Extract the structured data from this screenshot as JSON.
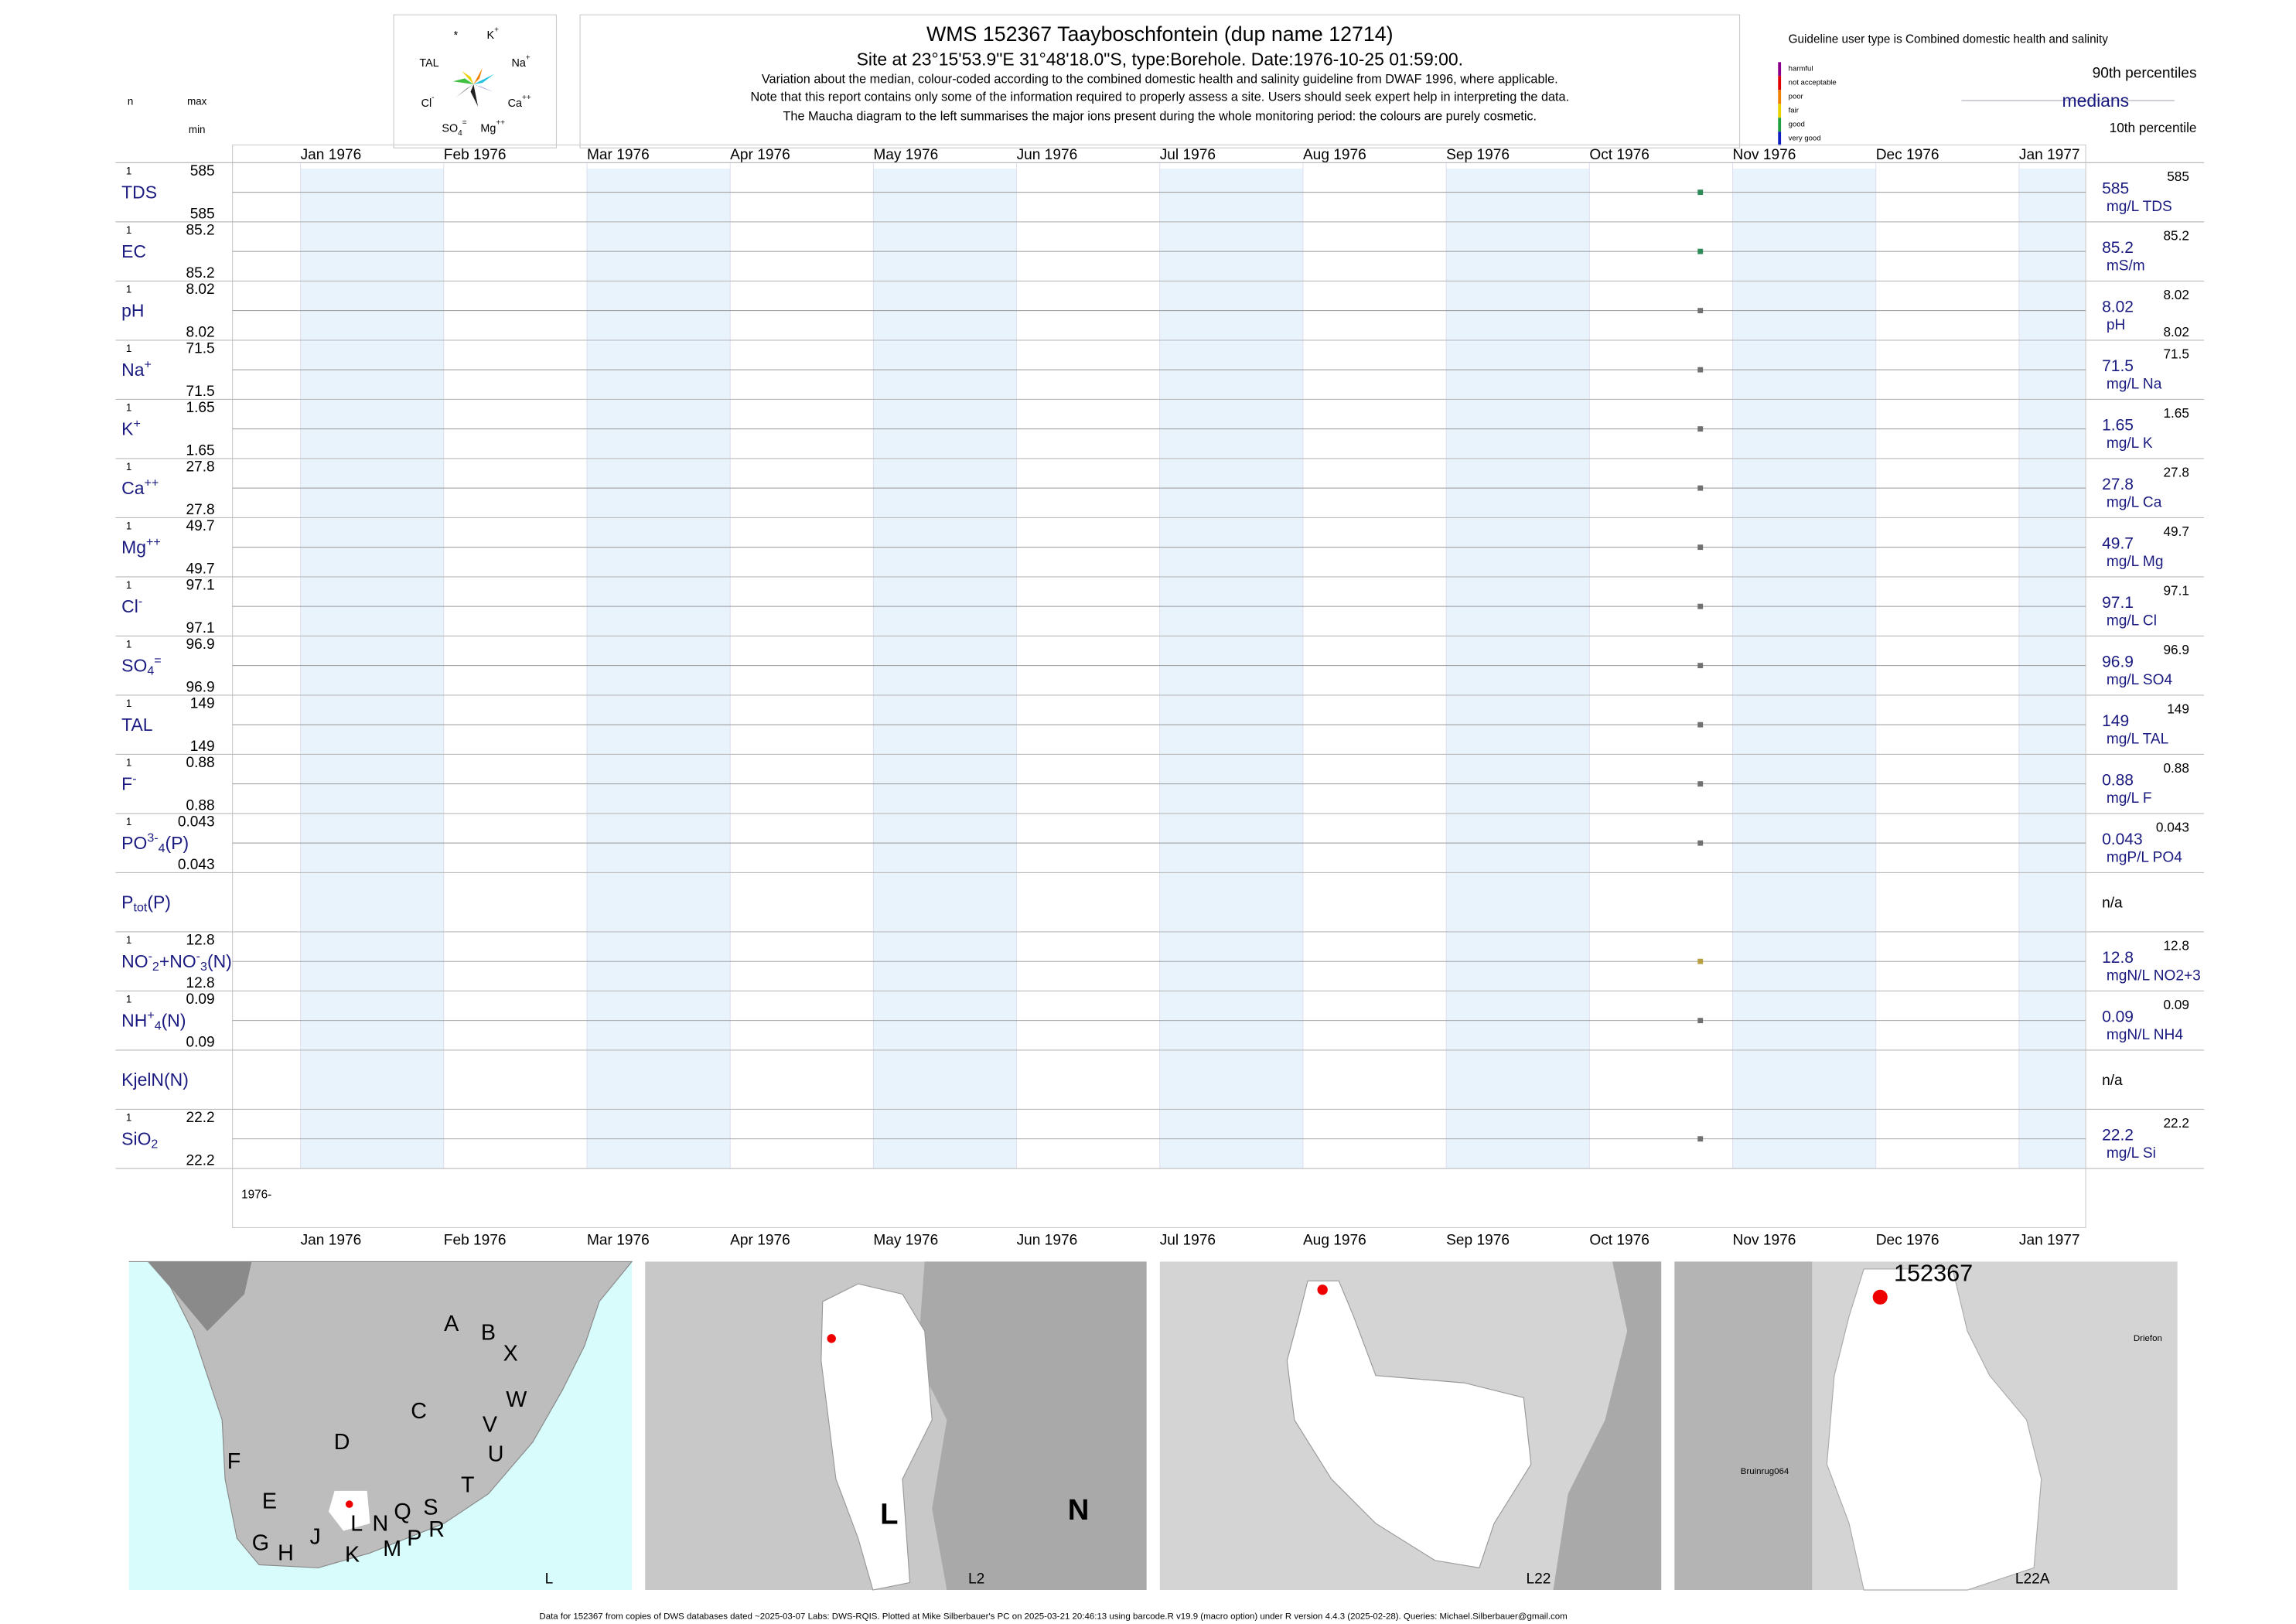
{
  "header": {
    "title": "WMS 152367  Taayboschfontein (dup name 12714)",
    "subtitle": "Site at 23°15'53.9\"E 31°48'18.0\"S, type:Borehole. Date:",
    "date": "1976-10-25 01:59:00.",
    "notes": [
      "Variation about the median,  colour-coded according to the combined domestic health and salinity guideline from DWAF 1996, where applicable.",
      "Note that this report contains only some of the information required to properly assess a site. Users should seek expert help in interpreting the data.",
      "The Maucha diagram to the left summarises the major ions present during the whole monitoring period: the colours are purely cosmetic."
    ]
  },
  "maucha": [
    [
      {
        "text": "*"
      }
    ],
    [
      {
        "text": "K"
      },
      {
        "text": "+",
        "pos": "sup"
      }
    ],
    [
      {
        "text": "TAL"
      }
    ],
    [
      {
        "text": "Na"
      },
      {
        "text": "+",
        "pos": "sup"
      }
    ],
    [
      {
        "text": "Cl"
      },
      {
        "text": "-",
        "pos": "sup"
      }
    ],
    [
      {
        "text": "Ca"
      },
      {
        "text": "++",
        "pos": "sup"
      }
    ],
    [
      {
        "text": "SO"
      },
      {
        "text": "4",
        "pos": "sub"
      },
      {
        "text": "=",
        "pos": "sup"
      }
    ],
    [
      {
        "text": "Mg"
      },
      {
        "text": "++",
        "pos": "sup"
      }
    ]
  ],
  "legend": {
    "guideline": "Guideline user type is Combined domestic health and salinity",
    "classes": [
      {
        "name": "harmful",
        "color": "#8b008b"
      },
      {
        "name": "not acceptable",
        "color": "#e00000"
      },
      {
        "name": "poor",
        "color": "#f08000"
      },
      {
        "name": "fair",
        "color": "#e8d000"
      },
      {
        "name": "good",
        "color": "#20a040"
      },
      {
        "name": "very good",
        "color": "#1020c0"
      }
    ],
    "p90": "90th percentiles",
    "median": "medians",
    "p10": "10th percentile"
  },
  "columns": {
    "n": "n",
    "max": "max",
    "min": "min"
  },
  "months": [
    "Jan 1976",
    "Feb 1976",
    "Mar 1976",
    "Apr 1976",
    "May 1976",
    "Jun 1976",
    "Jul 1976",
    "Aug 1976",
    "Sep 1976",
    "Oct 1976",
    "Nov 1976",
    "Dec 1976",
    "Jan 1977"
  ],
  "year_label": "1976-",
  "rows": [
    {
      "label": [
        {
          "text": "TDS"
        }
      ],
      "n": 1,
      "max": 585,
      "min": 585,
      "median": 585,
      "p90": 585,
      "unit": "mg/L TDS",
      "color": "#2e8b57"
    },
    {
      "label": [
        {
          "text": "EC"
        }
      ],
      "n": 1,
      "max": 85.2,
      "min": 85.2,
      "median": 85.2,
      "p90": 85.2,
      "unit": "mS/m",
      "color": "#2e8b57"
    },
    {
      "label": [
        {
          "text": "pH"
        }
      ],
      "n": 1,
      "max": 8.02,
      "min": 8.02,
      "median": 8.02,
      "p90": 8.02,
      "p10": 8.02,
      "unit": "pH",
      "color": "#707070"
    },
    {
      "label": [
        {
          "text": "Na"
        },
        {
          "text": "+",
          "pos": "sup"
        }
      ],
      "n": 1,
      "max": 71.5,
      "min": 71.5,
      "median": 71.5,
      "p90": 71.5,
      "unit": "mg/L Na",
      "color": "#707070"
    },
    {
      "label": [
        {
          "text": "K"
        },
        {
          "text": "+",
          "pos": "sup"
        }
      ],
      "n": 1,
      "max": 1.65,
      "min": 1.65,
      "median": 1.65,
      "p90": 1.65,
      "unit": "mg/L K",
      "color": "#707070"
    },
    {
      "label": [
        {
          "text": "Ca"
        },
        {
          "text": "++",
          "pos": "sup"
        }
      ],
      "n": 1,
      "max": 27.8,
      "min": 27.8,
      "median": 27.8,
      "p90": 27.8,
      "unit": "mg/L Ca",
      "color": "#707070"
    },
    {
      "label": [
        {
          "text": "Mg"
        },
        {
          "text": "++",
          "pos": "sup"
        }
      ],
      "n": 1,
      "max": 49.7,
      "min": 49.7,
      "median": 49.7,
      "p90": 49.7,
      "unit": "mg/L Mg",
      "color": "#707070"
    },
    {
      "label": [
        {
          "text": "Cl"
        },
        {
          "text": "-",
          "pos": "sup"
        }
      ],
      "n": 1,
      "max": 97.1,
      "min": 97.1,
      "median": 97.1,
      "p90": 97.1,
      "unit": "mg/L Cl",
      "color": "#707070"
    },
    {
      "label": [
        {
          "text": "SO"
        },
        {
          "text": "4",
          "pos": "sub"
        },
        {
          "text": "=",
          "pos": "sup"
        }
      ],
      "n": 1,
      "max": 96.9,
      "min": 96.9,
      "median": 96.9,
      "p90": 96.9,
      "unit": "mg/L SO4",
      "color": "#707070"
    },
    {
      "label": [
        {
          "text": "TAL"
        }
      ],
      "n": 1,
      "max": 149,
      "min": 149,
      "median": 149,
      "p90": 149,
      "unit": "mg/L TAL",
      "color": "#707070"
    },
    {
      "label": [
        {
          "text": "F"
        },
        {
          "text": "-",
          "pos": "sup"
        }
      ],
      "n": 1,
      "max": 0.88,
      "min": 0.88,
      "median": 0.88,
      "p90": 0.88,
      "unit": "mg/L F",
      "color": "#707070"
    },
    {
      "label": [
        {
          "text": "PO"
        },
        {
          "text": "3-",
          "pos": "sup"
        },
        {
          "text": "4",
          "pos": "sub"
        },
        {
          "text": "(P)"
        }
      ],
      "n": 1,
      "max": 0.043,
      "min": 0.043,
      "median": 0.043,
      "p90": 0.043,
      "unit": "mgP/L PO4",
      "color": "#707070"
    },
    {
      "label": [
        {
          "text": "P"
        },
        {
          "text": "tot",
          "pos": "sub"
        },
        {
          "text": "(P)"
        }
      ],
      "status": "n/a"
    },
    {
      "label": [
        {
          "text": "NO"
        },
        {
          "text": "-",
          "pos": "sup"
        },
        {
          "text": "2",
          "pos": "sub"
        },
        {
          "text": "+NO"
        },
        {
          "text": "-",
          "pos": "sup"
        },
        {
          "text": "3",
          "pos": "sub"
        },
        {
          "text": "(N)"
        }
      ],
      "n": 1,
      "max": 12.8,
      "min": 12.8,
      "median": 12.8,
      "p90": 12.8,
      "unit": "mgN/L NO2+3",
      "color": "#b8a040"
    },
    {
      "label": [
        {
          "text": "NH"
        },
        {
          "text": "+",
          "pos": "sup"
        },
        {
          "text": "4",
          "pos": "sub"
        },
        {
          "text": "(N)"
        }
      ],
      "n": 1,
      "max": 0.09,
      "min": 0.09,
      "median": 0.09,
      "p90": 0.09,
      "unit": "mgN/L NH4",
      "color": "#707070"
    },
    {
      "label": [
        {
          "text": "KjelN(N)"
        }
      ],
      "status": "n/a"
    },
    {
      "label": [
        {
          "text": "SiO"
        },
        {
          "text": "2",
          "pos": "sub"
        }
      ],
      "n": 1,
      "max": 22.2,
      "min": 22.2,
      "median": 22.2,
      "p90": 22.2,
      "unit": "mg/L Si",
      "color": "#707070"
    }
  ],
  "maps": [
    {
      "name": "L",
      "labels": [
        "A",
        "B",
        "X",
        "C",
        "W",
        "D",
        "V",
        "U",
        "F",
        "T",
        "E",
        "S",
        "L",
        "N",
        "Q",
        "R",
        "J",
        "M",
        "P",
        "G",
        "H",
        "K"
      ]
    },
    {
      "name": "L2",
      "labels": [
        "L",
        "N"
      ]
    },
    {
      "name": "L22",
      "labels": []
    },
    {
      "name": "L22A",
      "labels": [
        "152367",
        "Driefon",
        "Bruinrug064"
      ]
    }
  ],
  "footer": "Data for 152367 from copies of DWS databases dated ~2025-03-07 Labs: DWS-RQIS. Plotted at Mike Silberbauer's PC on 2025-03-21 20:46:13 using barcode.R v19.9 (macro option) under R version 4.4.3 (2025-02-28). Queries: Michael.Silberbauer@gmail.com"
}
